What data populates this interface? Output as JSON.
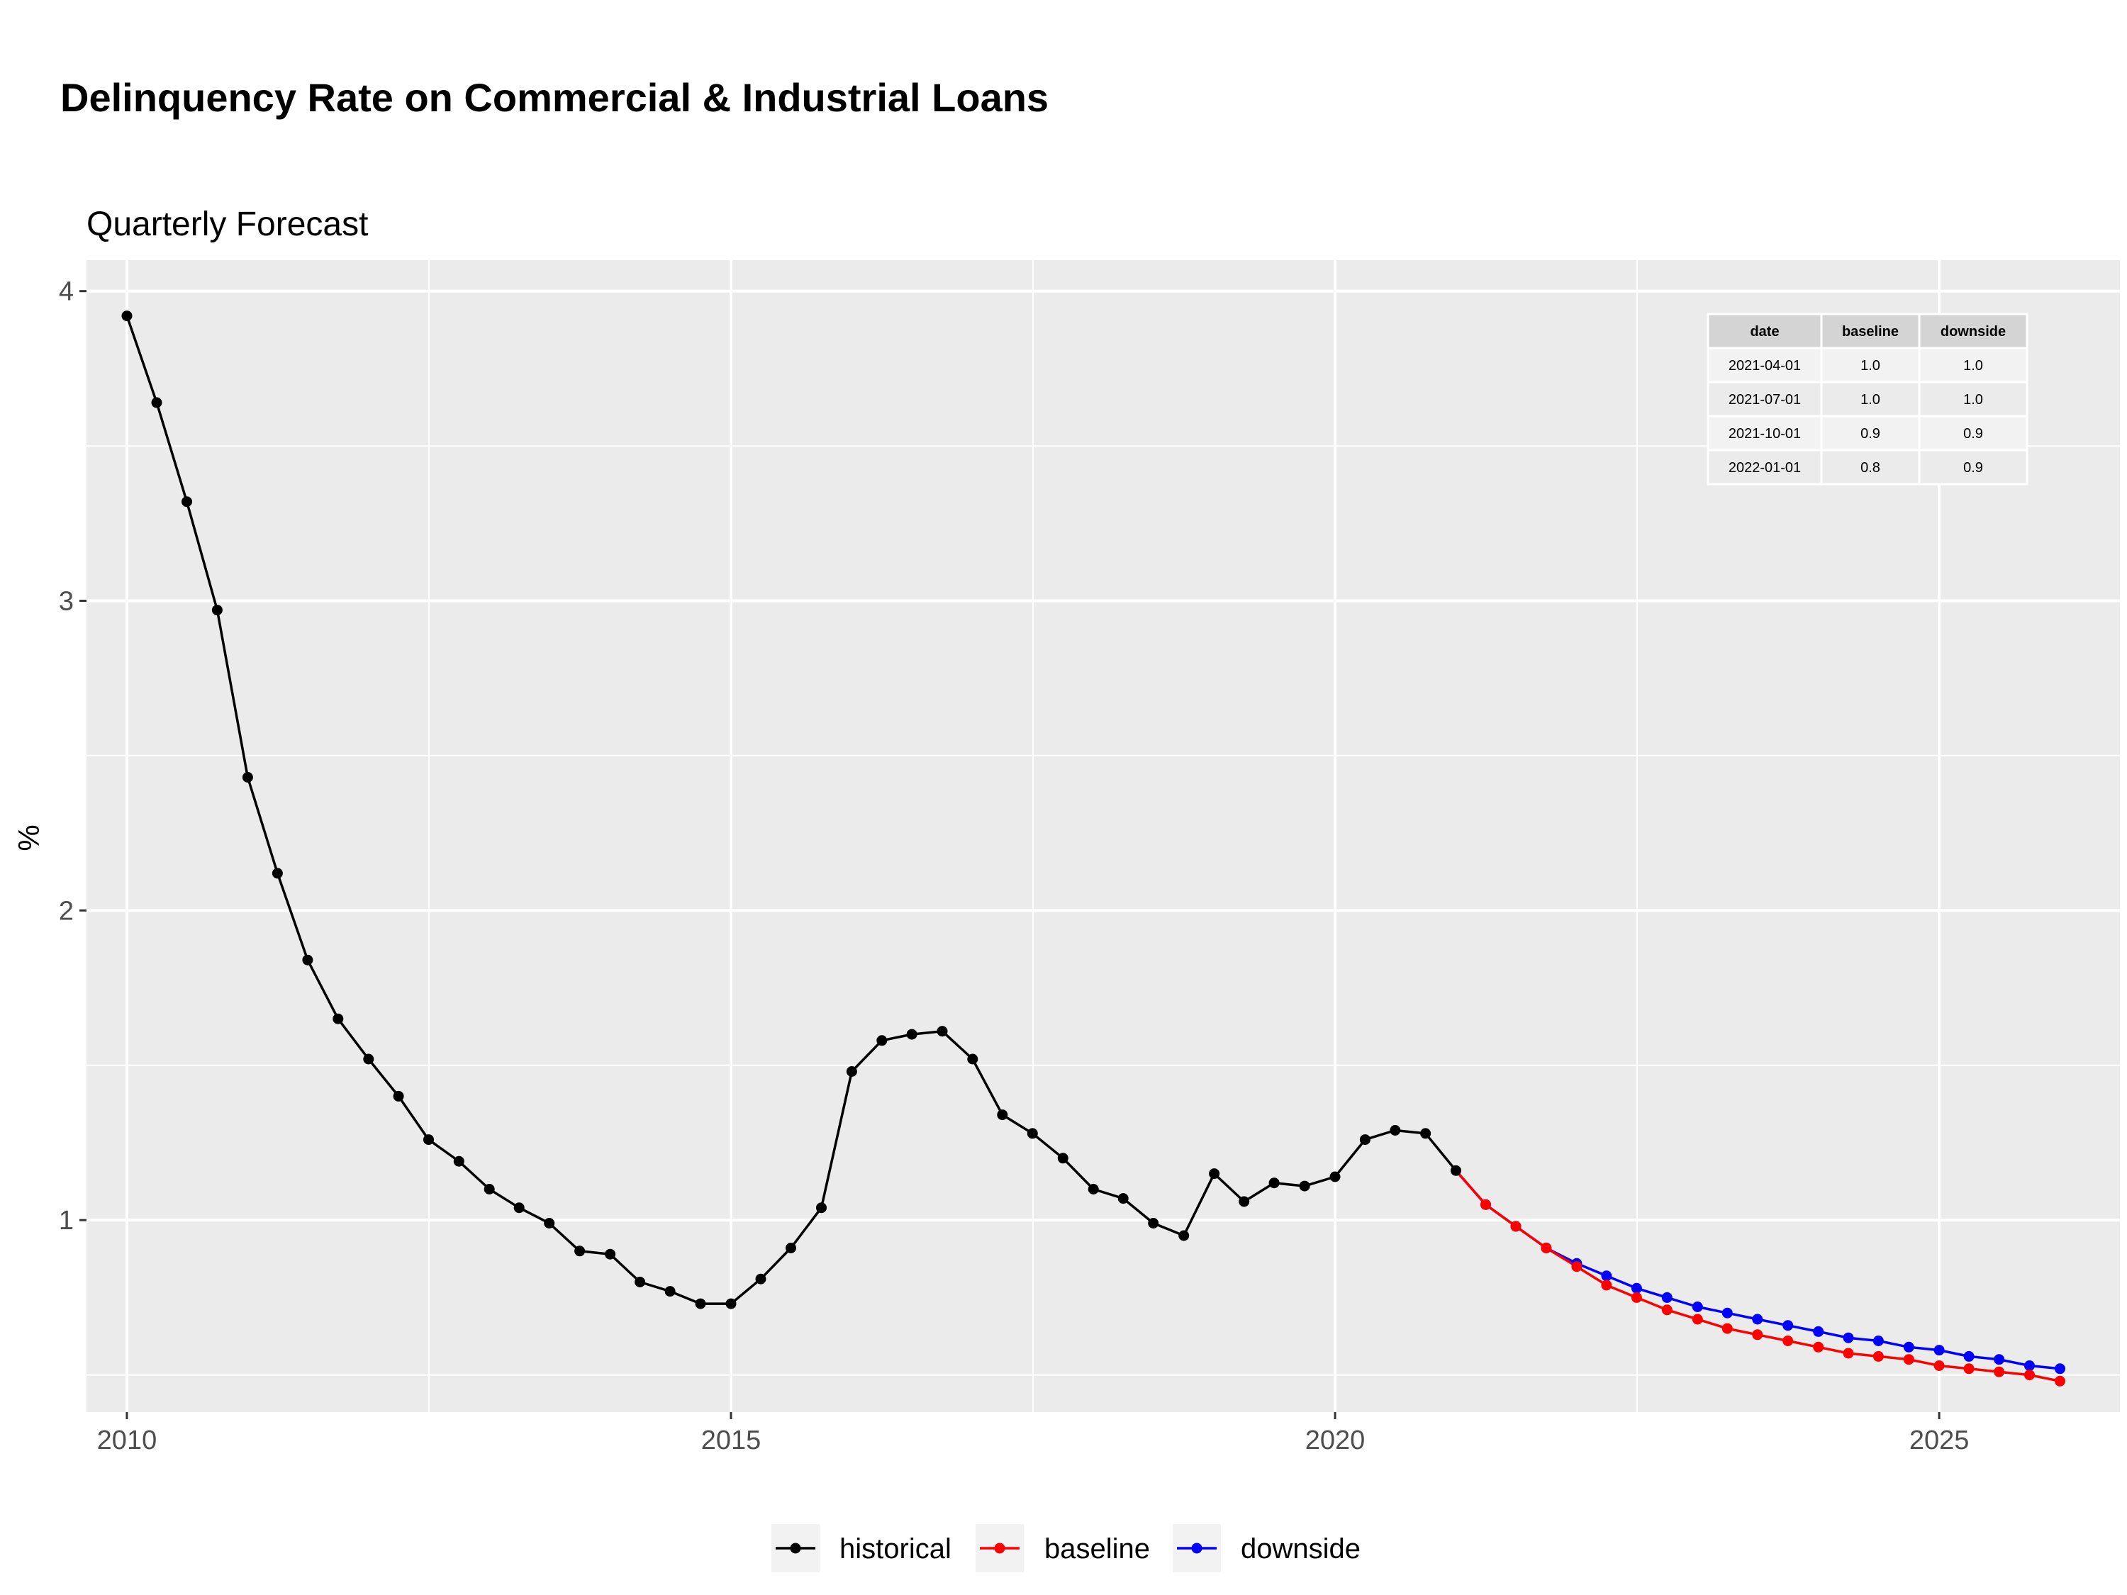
{
  "chart_data": {
    "type": "line",
    "title": "Delinquency Rate on Commercial & Industrial Loans",
    "subtitle": "Quarterly Forecast",
    "xlabel": "",
    "ylabel": "%",
    "xlim": [
      "2009-09-01",
      "2026-07-01"
    ],
    "ylim": [
      0.38,
      4.1
    ],
    "x_ticks": [
      2010,
      2015,
      2020,
      2025
    ],
    "y_ticks": [
      1,
      2,
      3,
      4
    ],
    "grid": true,
    "legend_position": "bottom",
    "series": [
      {
        "name": "historical",
        "color": "#000000",
        "x": [
          "2010-01-01",
          "2010-04-01",
          "2010-07-01",
          "2010-10-01",
          "2011-01-01",
          "2011-04-01",
          "2011-07-01",
          "2011-10-01",
          "2012-01-01",
          "2012-04-01",
          "2012-07-01",
          "2012-10-01",
          "2013-01-01",
          "2013-04-01",
          "2013-07-01",
          "2013-10-01",
          "2014-01-01",
          "2014-04-01",
          "2014-07-01",
          "2014-10-01",
          "2015-01-01",
          "2015-04-01",
          "2015-07-01",
          "2015-10-01",
          "2016-01-01",
          "2016-04-01",
          "2016-07-01",
          "2016-10-01",
          "2017-01-01",
          "2017-04-01",
          "2017-07-01",
          "2017-10-01",
          "2018-01-01",
          "2018-04-01",
          "2018-07-01",
          "2018-10-01",
          "2019-01-01",
          "2019-04-01",
          "2019-07-01",
          "2019-10-01",
          "2020-01-01",
          "2020-04-01",
          "2020-07-01",
          "2020-10-01",
          "2021-01-01"
        ],
        "values": [
          3.92,
          3.64,
          3.32,
          2.97,
          2.43,
          2.12,
          1.84,
          1.65,
          1.52,
          1.4,
          1.26,
          1.19,
          1.1,
          1.04,
          0.99,
          0.9,
          0.89,
          0.8,
          0.77,
          0.73,
          0.73,
          0.81,
          0.91,
          1.04,
          1.48,
          1.58,
          1.6,
          1.61,
          1.52,
          1.34,
          1.28,
          1.2,
          1.1,
          1.07,
          0.99,
          0.95,
          1.15,
          1.06,
          1.12,
          1.11,
          1.14,
          1.26,
          1.29,
          1.28,
          1.16
        ]
      },
      {
        "name": "baseline",
        "color": "#ff0000",
        "x": [
          "2021-04-01",
          "2021-07-01",
          "2021-10-01",
          "2022-01-01",
          "2022-04-01",
          "2022-07-01",
          "2022-10-01",
          "2023-01-01",
          "2023-04-01",
          "2023-07-01",
          "2023-10-01",
          "2024-01-01",
          "2024-04-01",
          "2024-07-01",
          "2024-10-01",
          "2025-01-01",
          "2025-04-01",
          "2025-07-01",
          "2025-10-01",
          "2026-01-01"
        ],
        "values": [
          1.05,
          0.98,
          0.91,
          0.85,
          0.79,
          0.75,
          0.71,
          0.68,
          0.65,
          0.63,
          0.61,
          0.59,
          0.57,
          0.56,
          0.55,
          0.53,
          0.52,
          0.51,
          0.5,
          0.48
        ]
      },
      {
        "name": "downside",
        "color": "#0000ff",
        "x": [
          "2021-04-01",
          "2021-07-01",
          "2021-10-01",
          "2022-01-01",
          "2022-04-01",
          "2022-07-01",
          "2022-10-01",
          "2023-01-01",
          "2023-04-01",
          "2023-07-01",
          "2023-10-01",
          "2024-01-01",
          "2024-04-01",
          "2024-07-01",
          "2024-10-01",
          "2025-01-01",
          "2025-04-01",
          "2025-07-01",
          "2025-10-01",
          "2026-01-01"
        ],
        "values": [
          1.05,
          0.98,
          0.91,
          0.86,
          0.82,
          0.78,
          0.75,
          0.72,
          0.7,
          0.68,
          0.66,
          0.64,
          0.62,
          0.61,
          0.59,
          0.58,
          0.56,
          0.55,
          0.53,
          0.52
        ]
      }
    ],
    "table": {
      "headers": [
        "date",
        "baseline",
        "downside"
      ],
      "rows": [
        [
          "2021-04-01",
          "1.0",
          "1.0"
        ],
        [
          "2021-07-01",
          "1.0",
          "1.0"
        ],
        [
          "2021-10-01",
          "0.9",
          "0.9"
        ],
        [
          "2022-01-01",
          "0.8",
          "0.9"
        ]
      ]
    },
    "colors": {
      "panel_bg": "#ebebeb",
      "grid": "#ffffff",
      "table_header": "#d4d4d4",
      "table_row": "#ebebeb"
    }
  }
}
